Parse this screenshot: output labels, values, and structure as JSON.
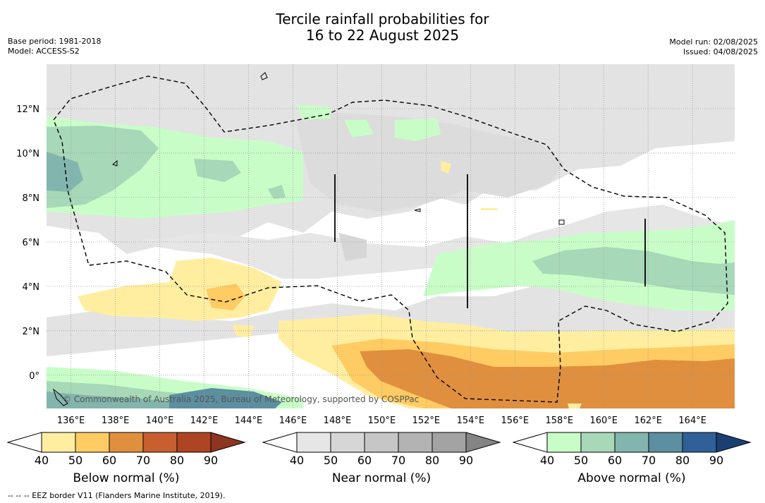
{
  "title": {
    "line1": "Tercile rainfall probabilities for",
    "line2": "16 to 22 August 2025"
  },
  "meta_left": {
    "base_period": "Base period: 1981-2018",
    "model": "Model: ACCESS-S2"
  },
  "meta_right": {
    "model_run": "Model run: 02/08/2025",
    "issued": "Issued: 04/08/2025"
  },
  "map": {
    "lon_range": [
      134.9,
      165.9
    ],
    "lat_range": [
      -1.5,
      14.0
    ],
    "lon_ticks": [
      "136°E",
      "138°E",
      "140°E",
      "142°E",
      "144°E",
      "146°E",
      "148°E",
      "150°E",
      "152°E",
      "154°E",
      "156°E",
      "158°E",
      "160°E",
      "162°E",
      "164°E"
    ],
    "lat_ticks": [
      "12°N",
      "10°N",
      "8°N",
      "6°N",
      "4°N",
      "2°N",
      "0°"
    ],
    "copyright": "© Commonwealth of Australia 2025, Bureau of Meteorology, supported by COSPPac"
  },
  "colorbars": [
    {
      "title": "Below normal (%)",
      "ticks": [
        "40",
        "50",
        "60",
        "70",
        "80",
        "90"
      ],
      "colors": [
        "#ffeea0",
        "#ffcb63",
        "#df8f3e",
        "#c95f2f",
        "#ad4522",
        "#8e3420"
      ]
    },
    {
      "title": "Near normal (%)",
      "ticks": [
        "40",
        "50",
        "60",
        "70",
        "80",
        "90"
      ],
      "colors": [
        "#e6e6e6",
        "#d6d6d6",
        "#c6c6c6",
        "#b3b3b3",
        "#a3a3a3",
        "#858585"
      ]
    },
    {
      "title": "Above normal (%)",
      "ticks": [
        "40",
        "50",
        "60",
        "70",
        "80",
        "90"
      ],
      "colors": [
        "#c9fdc8",
        "#a7d8b8",
        "#82b5ad",
        "#5c8fa0",
        "#2f6198",
        "#1c3f73"
      ]
    }
  ],
  "footnote": "-- -- -- EEZ border V11 (Flanders Marine Institute, 2019)."
}
